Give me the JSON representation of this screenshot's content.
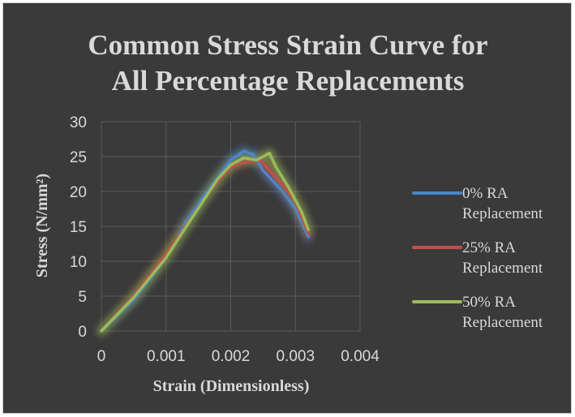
{
  "chart_data": {
    "type": "line",
    "title_lines": [
      "Common Stress Strain Curve for",
      "All Percentage Replacements"
    ],
    "xlabel": "Strain (Dimensionless)",
    "ylabel": "Stress (N/mm²)",
    "xlim": [
      0,
      0.004
    ],
    "ylim": [
      0,
      30
    ],
    "x_ticks": [
      "0",
      "0.001",
      "0.002",
      "0.003",
      "0.004"
    ],
    "y_ticks": [
      "0",
      "5",
      "10",
      "15",
      "20",
      "25",
      "30"
    ],
    "grid": true,
    "legend_position": "right",
    "series": [
      {
        "legend_lines": [
          "0% RA",
          "Replacement"
        ],
        "color": "#4a86c8",
        "points": [
          [
            0,
            0
          ],
          [
            0.0005,
            4.5
          ],
          [
            0.001,
            10.5
          ],
          [
            0.0013,
            15.5
          ],
          [
            0.0016,
            19.5
          ],
          [
            0.0018,
            22
          ],
          [
            0.002,
            24.5
          ],
          [
            0.0022,
            25.8
          ],
          [
            0.00235,
            25.3
          ],
          [
            0.0025,
            23
          ],
          [
            0.0028,
            20
          ],
          [
            0.003,
            17.5
          ],
          [
            0.0032,
            13.5
          ]
        ]
      },
      {
        "legend_lines": [
          "25% RA",
          "Replacement"
        ],
        "color": "#c0504d",
        "points": [
          [
            0,
            0
          ],
          [
            0.0005,
            5
          ],
          [
            0.001,
            11
          ],
          [
            0.0013,
            15
          ],
          [
            0.0016,
            19
          ],
          [
            0.0018,
            21.5
          ],
          [
            0.002,
            23.5
          ],
          [
            0.0022,
            24.2
          ],
          [
            0.00245,
            24.5
          ],
          [
            0.0026,
            23
          ],
          [
            0.0028,
            21
          ],
          [
            0.003,
            18.5
          ],
          [
            0.0032,
            14
          ]
        ]
      },
      {
        "legend_lines": [
          "50% RA",
          "Replacement"
        ],
        "color": "#9bbb59",
        "points": [
          [
            0,
            0
          ],
          [
            0.0005,
            4.8
          ],
          [
            0.001,
            10.5
          ],
          [
            0.0013,
            14.8
          ],
          [
            0.0016,
            19
          ],
          [
            0.0018,
            21.8
          ],
          [
            0.002,
            23.8
          ],
          [
            0.0022,
            24.8
          ],
          [
            0.0024,
            24.5
          ],
          [
            0.0025,
            25
          ],
          [
            0.0026,
            25.5
          ],
          [
            0.0027,
            23.5
          ],
          [
            0.0029,
            20.5
          ],
          [
            0.0031,
            17
          ],
          [
            0.0032,
            14.5
          ]
        ]
      }
    ]
  }
}
